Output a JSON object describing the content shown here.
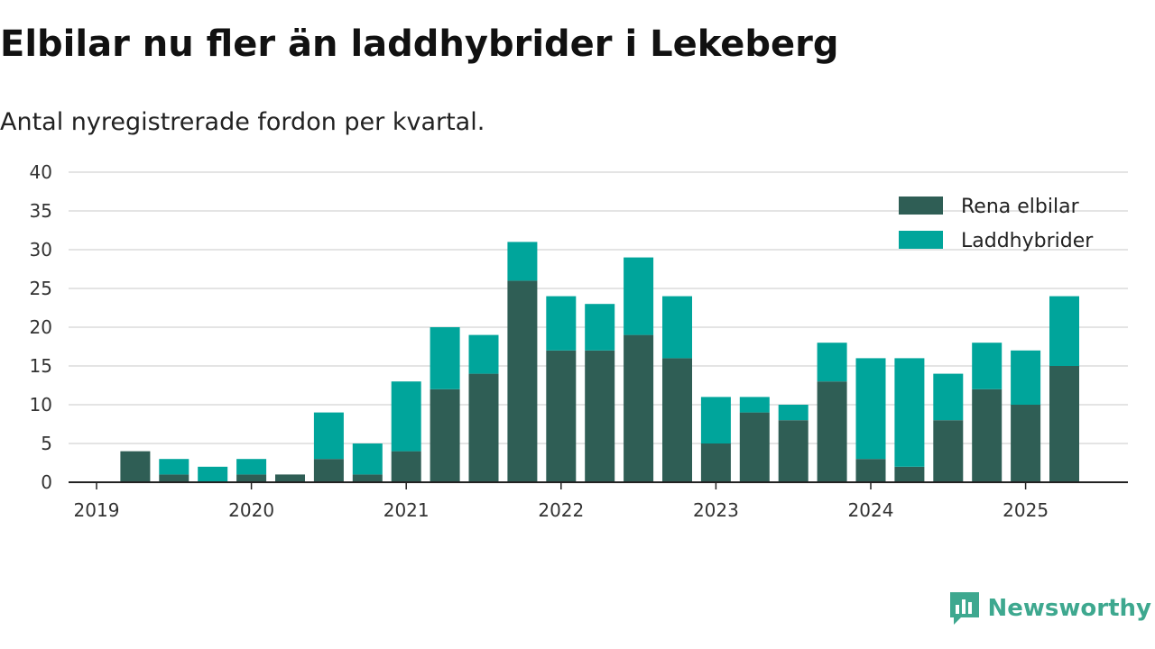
{
  "title": "Elbilar nu fler än laddhybrider i Lekeberg",
  "subtitle": "Antal nyregistrerade fordon per kvartal.",
  "brand": "Newsworthy",
  "colors": {
    "elbilar": "#2f5e55",
    "laddhybrider": "#00a59b",
    "grid": "#dcdcdc",
    "axis": "#222222",
    "brand": "#3ea88f"
  },
  "chart_data": {
    "type": "bar",
    "stacked": true,
    "categories": [
      "2019-Q1",
      "2019-Q2",
      "2019-Q3",
      "2019-Q4",
      "2020-Q1",
      "2020-Q2",
      "2020-Q3",
      "2020-Q4",
      "2021-Q1",
      "2021-Q2",
      "2021-Q3",
      "2021-Q4",
      "2022-Q1",
      "2022-Q2",
      "2022-Q3",
      "2022-Q4",
      "2023-Q1",
      "2023-Q2",
      "2023-Q3",
      "2023-Q4",
      "2024-Q1",
      "2024-Q2",
      "2024-Q3",
      "2024-Q4",
      "2025-Q1",
      "2025-Q2"
    ],
    "series": [
      {
        "name": "Rena elbilar",
        "values": [
          0,
          4,
          1,
          0,
          1,
          1,
          3,
          1,
          4,
          12,
          14,
          26,
          17,
          17,
          19,
          16,
          5,
          9,
          8,
          13,
          3,
          2,
          8,
          12,
          10,
          15
        ]
      },
      {
        "name": "Laddhybrider",
        "values": [
          0,
          0,
          2,
          2,
          2,
          0,
          6,
          4,
          9,
          8,
          5,
          5,
          7,
          6,
          10,
          8,
          6,
          2,
          2,
          5,
          13,
          14,
          6,
          6,
          7,
          9
        ]
      }
    ],
    "x_tick_labels": [
      "2019",
      "2020",
      "2021",
      "2022",
      "2023",
      "2024",
      "2025"
    ],
    "y_ticks": [
      0,
      5,
      10,
      15,
      20,
      25,
      30,
      35,
      40
    ],
    "ylim": [
      0,
      40
    ],
    "grid": true,
    "legend_position": "top-right"
  }
}
